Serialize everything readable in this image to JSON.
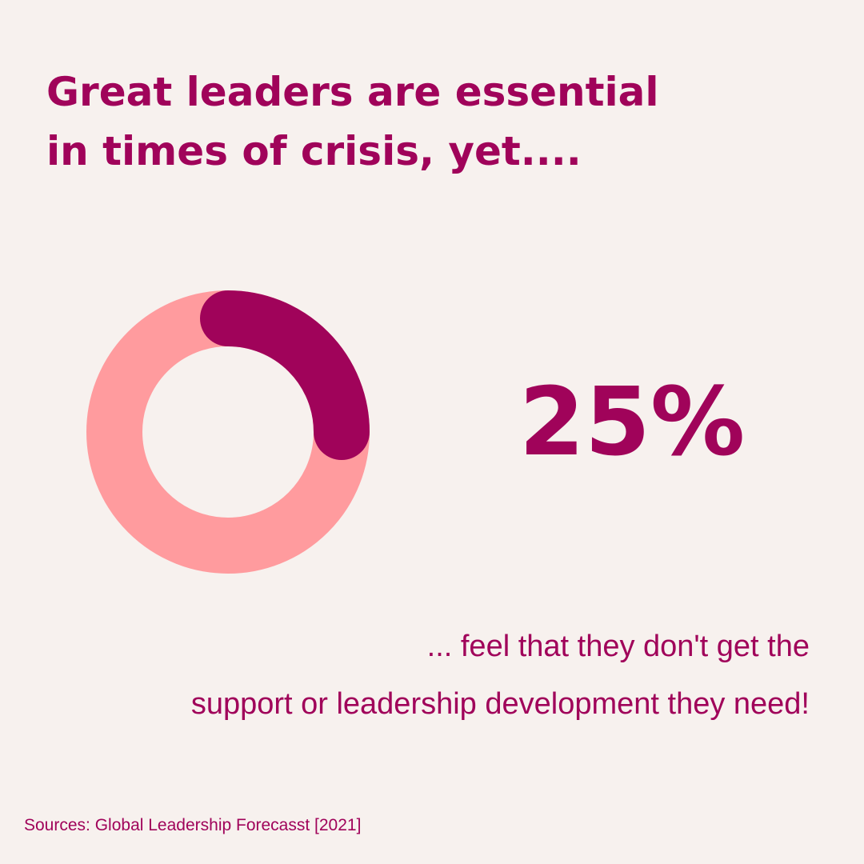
{
  "chart_data": {
    "type": "donut",
    "title": [
      "Great leaders are essential",
      "in times of crisis, yet...."
    ],
    "values": [
      25
    ],
    "value_labels": [
      "25%"
    ],
    "max": 100,
    "color": "#a0035a",
    "track_color": "#ff9b9e",
    "caption": [
      "... feel that they don't get the",
      "support or leadership development they need!"
    ],
    "source": "Sources: Global Leadership Forecasst [2021]"
  }
}
